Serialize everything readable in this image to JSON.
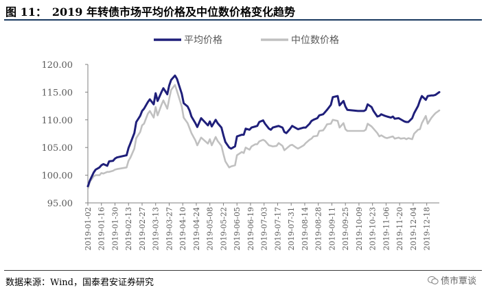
{
  "header": {
    "fig_no": "图 11：",
    "title": "2019 年转债市场平均价格及中位数价格变化趋势"
  },
  "footer": {
    "source": "数据来源：Wind，国泰君安证券研究",
    "watermark": "债市覃谈"
  },
  "chart_data": {
    "type": "line",
    "title": "2019 年转债市场平均价格及中位数价格变化趋势",
    "ylim": [
      95,
      120
    ],
    "yticks": [
      "95.00",
      "100.00",
      "105.00",
      "110.00",
      "115.00",
      "120.00"
    ],
    "x_tick_labels": [
      "2019-01-02",
      "2019-01-16",
      "2019-01-30",
      "2019-02-13",
      "2019-02-27",
      "2019-03-13",
      "2019-03-27",
      "2019-04-10",
      "2019-04-24",
      "2019-05-08",
      "2019-05-22",
      "2019-06-05",
      "2019-06-19",
      "2019-07-03",
      "2019-07-17",
      "2019-07-31",
      "2019-08-14",
      "2019-08-28",
      "2019-09-11",
      "2019-09-25",
      "2019-10-09",
      "2019-10-23",
      "2019-11-06",
      "2019-11-20",
      "2019-12-04",
      "2019-12-18"
    ],
    "legend_position": "top",
    "grid": false,
    "colors": {
      "series_0": "#1f1f7a",
      "series_1": "#c0c0c0",
      "axis": "#7f7f7f"
    },
    "x": [
      "2019-01-02",
      "2019-01-04",
      "2019-01-08",
      "2019-01-10",
      "2019-01-14",
      "2019-01-16",
      "2019-01-18",
      "2019-01-22",
      "2019-01-24",
      "2019-01-28",
      "2019-01-30",
      "2019-02-01",
      "2019-02-11",
      "2019-02-13",
      "2019-02-15",
      "2019-02-19",
      "2019-02-21",
      "2019-02-25",
      "2019-02-27",
      "2019-03-01",
      "2019-03-05",
      "2019-03-07",
      "2019-03-11",
      "2019-03-13",
      "2019-03-15",
      "2019-03-19",
      "2019-03-21",
      "2019-03-25",
      "2019-03-27",
      "2019-03-29",
      "2019-04-02",
      "2019-04-04",
      "2019-04-09",
      "2019-04-11",
      "2019-04-15",
      "2019-04-17",
      "2019-04-19",
      "2019-04-23",
      "2019-04-25",
      "2019-04-29",
      "2019-05-06",
      "2019-05-08",
      "2019-05-10",
      "2019-05-14",
      "2019-05-16",
      "2019-05-20",
      "2019-05-22",
      "2019-05-24",
      "2019-05-28",
      "2019-05-30",
      "2019-06-03",
      "2019-06-05",
      "2019-06-10",
      "2019-06-12",
      "2019-06-14",
      "2019-06-18",
      "2019-06-20",
      "2019-06-24",
      "2019-06-26",
      "2019-06-28",
      "2019-07-02",
      "2019-07-04",
      "2019-07-08",
      "2019-07-10",
      "2019-07-12",
      "2019-07-16",
      "2019-07-18",
      "2019-07-22",
      "2019-07-24",
      "2019-07-26",
      "2019-07-30",
      "2019-08-01",
      "2019-08-05",
      "2019-08-07",
      "2019-08-09",
      "2019-08-13",
      "2019-08-15",
      "2019-08-19",
      "2019-08-21",
      "2019-08-23",
      "2019-08-27",
      "2019-08-29",
      "2019-09-02",
      "2019-09-04",
      "2019-09-06",
      "2019-09-10",
      "2019-09-12",
      "2019-09-17",
      "2019-09-19",
      "2019-09-23",
      "2019-09-25",
      "2019-09-27",
      "2019-10-08",
      "2019-10-10",
      "2019-10-14",
      "2019-10-16",
      "2019-10-18",
      "2019-10-22",
      "2019-10-24",
      "2019-10-28",
      "2019-10-30",
      "2019-11-01",
      "2019-11-05",
      "2019-11-07",
      "2019-11-11",
      "2019-11-13",
      "2019-11-15",
      "2019-11-19",
      "2019-11-21",
      "2019-11-25",
      "2019-11-27",
      "2019-11-29",
      "2019-12-03",
      "2019-12-05",
      "2019-12-09",
      "2019-12-11",
      "2019-12-13",
      "2019-12-17",
      "2019-12-19",
      "2019-12-23",
      "2019-12-25",
      "2019-12-27",
      "2019-12-31"
    ],
    "series": [
      {
        "name": "平均价格",
        "values": [
          98.0,
          99.0,
          100.5,
          101.0,
          101.4,
          101.8,
          102.0,
          101.7,
          102.5,
          102.6,
          103.0,
          103.2,
          103.6,
          104.9,
          105.8,
          107.6,
          109.6,
          110.7,
          111.6,
          112.0,
          113.2,
          113.7,
          112.8,
          114.8,
          113.4,
          115.0,
          115.7,
          114.6,
          116.2,
          117.2,
          118.0,
          117.4,
          114.7,
          113.0,
          112.4,
          111.7,
          110.6,
          109.4,
          108.7,
          110.3,
          109.0,
          109.7,
          108.8,
          110.0,
          109.4,
          108.6,
          107.2,
          106.0,
          105.0,
          104.8,
          105.2,
          107.0,
          107.3,
          107.3,
          108.4,
          108.2,
          108.6,
          108.8,
          108.9,
          109.6,
          109.9,
          109.3,
          108.4,
          108.2,
          108.6,
          108.8,
          108.9,
          108.6,
          107.8,
          107.6,
          108.4,
          108.9,
          108.5,
          108.3,
          108.4,
          108.6,
          108.6,
          109.3,
          109.8,
          110.0,
          110.3,
          110.8,
          111.0,
          111.4,
          111.8,
          112.7,
          114.1,
          114.3,
          112.6,
          113.4,
          112.4,
          111.8,
          111.6,
          111.6,
          111.6,
          111.8,
          112.8,
          112.3,
          111.6,
          110.6,
          110.7,
          111.0,
          110.7,
          110.6,
          110.4,
          110.6,
          110.2,
          110.3,
          110.1,
          109.7,
          109.6,
          109.6,
          110.3,
          111.2,
          112.5,
          113.5,
          114.3,
          113.6,
          114.3,
          114.4,
          114.4,
          114.5,
          115.0
        ]
      },
      {
        "name": "中位数价格",
        "values": [
          97.5,
          98.8,
          99.8,
          100.0,
          100.0,
          100.4,
          100.3,
          100.6,
          100.6,
          100.8,
          101.0,
          101.1,
          101.4,
          102.6,
          103.2,
          104.8,
          106.7,
          107.8,
          109.0,
          109.3,
          111.1,
          111.6,
          110.4,
          112.3,
          110.8,
          112.7,
          113.5,
          112.0,
          113.8,
          115.4,
          116.3,
          115.2,
          112.4,
          110.4,
          109.4,
          108.5,
          107.6,
          106.3,
          105.4,
          106.8,
          105.7,
          106.5,
          105.4,
          106.9,
          106.2,
          105.3,
          103.8,
          102.5,
          101.4,
          101.6,
          101.8,
          103.6,
          104.2,
          104.0,
          105.0,
          104.6,
          105.2,
          105.6,
          105.6,
          106.1,
          106.4,
          106.2,
          105.4,
          105.3,
          105.2,
          105.3,
          105.8,
          105.3,
          104.5,
          104.8,
          105.4,
          105.5,
          105.0,
          104.8,
          105.0,
          105.4,
          105.8,
          106.4,
          106.6,
          107.0,
          107.1,
          108.0,
          108.1,
          108.6,
          109.2,
          109.3,
          110.0,
          109.8,
          108.6,
          109.4,
          108.3,
          108.0,
          108.0,
          108.0,
          108.0,
          108.2,
          109.3,
          108.8,
          108.4,
          107.6,
          107.0,
          107.2,
          106.8,
          106.7,
          106.9,
          107.0,
          106.6,
          106.8,
          106.6,
          106.7,
          106.5,
          106.7,
          106.5,
          107.5,
          108.2,
          108.3,
          109.4,
          110.7,
          109.3,
          110.4,
          110.8,
          111.2,
          111.7
        ]
      }
    ]
  }
}
